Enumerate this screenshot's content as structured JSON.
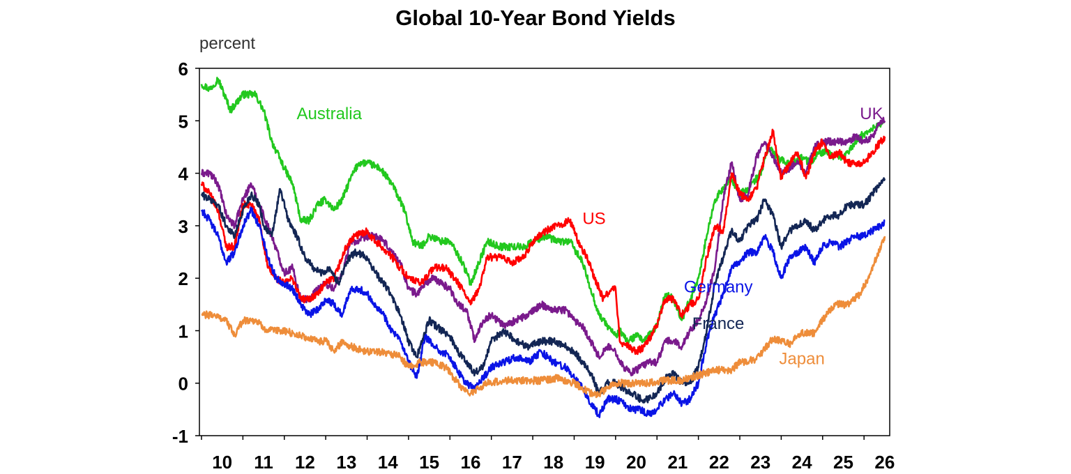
{
  "chart_data": {
    "type": "line",
    "title": "Global 10-Year Bond Yields",
    "ylabel": "percent",
    "xlabel": "",
    "xlim": [
      2009.95,
      2026.62
    ],
    "ylim": [
      -1,
      6
    ],
    "yticks": [
      -1,
      0,
      1,
      2,
      3,
      4,
      5,
      6
    ],
    "xticks": [
      {
        "label": "10",
        "x": 2010.5
      },
      {
        "label": "11",
        "x": 2011.5
      },
      {
        "label": "12",
        "x": 2012.5
      },
      {
        "label": "13",
        "x": 2013.5
      },
      {
        "label": "14",
        "x": 2014.5
      },
      {
        "label": "15",
        "x": 2015.5
      },
      {
        "label": "16",
        "x": 2016.5
      },
      {
        "label": "17",
        "x": 2017.5
      },
      {
        "label": "18",
        "x": 2018.5
      },
      {
        "label": "19",
        "x": 2019.5
      },
      {
        "label": "20",
        "x": 2020.5
      },
      {
        "label": "21",
        "x": 2021.5
      },
      {
        "label": "22",
        "x": 2022.5
      },
      {
        "label": "23",
        "x": 2023.5
      },
      {
        "label": "24",
        "x": 2024.5
      },
      {
        "label": "25",
        "x": 2025.5
      },
      {
        "label": "26",
        "x": 2026.5
      }
    ],
    "grid": false,
    "legend": "inline labels",
    "series": [
      {
        "name": "Australia",
        "color": "#22c81e",
        "label_at": [
          2012.3,
          5.03
        ],
        "x": [
          2010.0,
          2010.2,
          2010.4,
          2010.7,
          2011.0,
          2011.3,
          2011.5,
          2011.7,
          2012.0,
          2012.2,
          2012.4,
          2012.6,
          2012.8,
          2013.0,
          2013.2,
          2013.4,
          2013.6,
          2013.8,
          2014.0,
          2014.3,
          2014.6,
          2014.9,
          2015.1,
          2015.3,
          2015.5,
          2015.8,
          2016.0,
          2016.3,
          2016.5,
          2016.7,
          2016.9,
          2017.2,
          2017.5,
          2017.8,
          2018.0,
          2018.3,
          2018.6,
          2018.9,
          2019.2,
          2019.4,
          2019.6,
          2019.8,
          2020.0,
          2020.1,
          2020.3,
          2020.5,
          2020.7,
          2021.0,
          2021.2,
          2021.4,
          2021.6,
          2021.8,
          2022.0,
          2022.2,
          2022.4,
          2022.6,
          2022.8,
          2023.0,
          2023.2,
          2023.5,
          2023.7,
          2023.9,
          2024.1,
          2024.3,
          2024.5,
          2024.7,
          2024.9,
          2025.1,
          2025.3,
          2025.5,
          2025.7,
          2025.9,
          2026.1,
          2026.3,
          2026.5
        ],
        "y": [
          5.7,
          5.6,
          5.8,
          5.2,
          5.5,
          5.5,
          5.2,
          4.6,
          4.1,
          3.8,
          3.1,
          3.1,
          3.4,
          3.5,
          3.3,
          3.5,
          3.9,
          4.2,
          4.2,
          4.1,
          3.8,
          3.3,
          2.7,
          2.6,
          2.8,
          2.7,
          2.7,
          2.3,
          1.9,
          2.3,
          2.7,
          2.6,
          2.6,
          2.6,
          2.7,
          2.8,
          2.7,
          2.7,
          2.3,
          1.8,
          1.3,
          1.1,
          0.9,
          1.0,
          0.8,
          0.9,
          0.8,
          1.1,
          1.7,
          1.6,
          1.2,
          1.6,
          2.0,
          2.8,
          3.5,
          3.7,
          3.9,
          3.6,
          3.7,
          4.0,
          4.5,
          4.3,
          4.2,
          4.2,
          4.3,
          4.2,
          4.4,
          4.4,
          4.3,
          4.3,
          4.5,
          4.7,
          4.8,
          4.9,
          5.0
        ]
      },
      {
        "name": "UK",
        "color": "#7a1a8c",
        "label_at": [
          2025.9,
          5.03
        ],
        "x": [
          2010.0,
          2010.2,
          2010.4,
          2010.6,
          2010.8,
          2011.0,
          2011.2,
          2011.5,
          2011.7,
          2012.0,
          2012.2,
          2012.4,
          2012.6,
          2012.8,
          2013.0,
          2013.2,
          2013.4,
          2013.6,
          2013.8,
          2014.0,
          2014.2,
          2014.4,
          2014.6,
          2014.8,
          2015.0,
          2015.2,
          2015.4,
          2015.6,
          2015.8,
          2016.0,
          2016.2,
          2016.4,
          2016.6,
          2016.8,
          2017.0,
          2017.3,
          2017.6,
          2017.9,
          2018.2,
          2018.5,
          2018.8,
          2019.0,
          2019.2,
          2019.4,
          2019.6,
          2019.8,
          2020.0,
          2020.2,
          2020.4,
          2020.6,
          2020.8,
          2021.0,
          2021.2,
          2021.4,
          2021.6,
          2021.8,
          2022.0,
          2022.2,
          2022.4,
          2022.6,
          2022.8,
          2023.0,
          2023.2,
          2023.4,
          2023.6,
          2023.8,
          2024.0,
          2024.2,
          2024.4,
          2024.6,
          2024.8,
          2025.0,
          2025.2,
          2025.4,
          2025.6,
          2025.8,
          2026.0,
          2026.2,
          2026.4,
          2026.5
        ],
        "y": [
          4.0,
          4.0,
          3.8,
          3.2,
          3.0,
          3.5,
          3.8,
          3.2,
          2.8,
          2.1,
          2.2,
          1.6,
          1.6,
          1.8,
          1.9,
          1.8,
          2.1,
          2.7,
          2.7,
          2.8,
          2.8,
          2.7,
          2.5,
          2.3,
          1.8,
          1.7,
          1.9,
          2.0,
          1.9,
          1.8,
          1.5,
          1.4,
          0.8,
          1.2,
          1.3,
          1.1,
          1.2,
          1.3,
          1.5,
          1.4,
          1.4,
          1.2,
          1.1,
          0.8,
          0.5,
          0.7,
          0.6,
          0.3,
          0.2,
          0.3,
          0.4,
          0.4,
          0.8,
          0.8,
          0.7,
          1.0,
          1.2,
          1.6,
          2.2,
          3.5,
          4.2,
          3.5,
          3.6,
          4.3,
          4.6,
          4.3,
          4.0,
          4.1,
          4.2,
          4.0,
          4.5,
          4.6,
          4.6,
          4.6,
          4.6,
          4.7,
          4.6,
          4.7,
          5.0,
          5.0
        ]
      },
      {
        "name": "US",
        "color": "#ff0000",
        "label_at": [
          2019.2,
          3.03
        ],
        "x": [
          2010.0,
          2010.2,
          2010.4,
          2010.6,
          2010.8,
          2011.0,
          2011.2,
          2011.4,
          2011.6,
          2011.8,
          2012.0,
          2012.2,
          2012.4,
          2012.6,
          2012.8,
          2013.0,
          2013.2,
          2013.5,
          2013.7,
          2014.0,
          2014.2,
          2014.5,
          2014.8,
          2015.0,
          2015.3,
          2015.6,
          2015.9,
          2016.1,
          2016.3,
          2016.5,
          2016.7,
          2016.9,
          2017.2,
          2017.5,
          2017.8,
          2018.0,
          2018.3,
          2018.6,
          2018.9,
          2019.1,
          2019.3,
          2019.5,
          2019.7,
          2019.9,
          2020.0,
          2020.1,
          2020.3,
          2020.5,
          2020.7,
          2021.0,
          2021.2,
          2021.4,
          2021.6,
          2021.8,
          2022.0,
          2022.2,
          2022.4,
          2022.6,
          2022.8,
          2023.0,
          2023.2,
          2023.4,
          2023.6,
          2023.8,
          2024.0,
          2024.2,
          2024.4,
          2024.6,
          2024.8,
          2025.0,
          2025.2,
          2025.4,
          2025.6,
          2025.8,
          2026.0,
          2026.2,
          2026.4,
          2026.5
        ],
        "y": [
          3.8,
          3.6,
          3.3,
          2.6,
          2.6,
          3.4,
          3.4,
          3.1,
          2.2,
          2.0,
          1.9,
          2.0,
          1.6,
          1.6,
          1.7,
          1.9,
          2.0,
          2.6,
          2.8,
          2.9,
          2.7,
          2.5,
          2.2,
          2.0,
          1.9,
          2.2,
          2.2,
          2.0,
          1.8,
          1.5,
          1.8,
          2.4,
          2.4,
          2.3,
          2.4,
          2.7,
          2.9,
          3.0,
          3.1,
          2.7,
          2.4,
          2.0,
          1.6,
          1.8,
          1.8,
          0.8,
          0.7,
          0.6,
          0.7,
          1.1,
          1.6,
          1.6,
          1.3,
          1.5,
          1.6,
          2.4,
          3.0,
          2.9,
          4.0,
          3.6,
          3.5,
          3.7,
          4.3,
          4.8,
          3.9,
          4.2,
          4.4,
          3.9,
          4.4,
          4.6,
          4.3,
          4.4,
          4.2,
          4.2,
          4.2,
          4.4,
          4.6,
          4.7
        ]
      },
      {
        "name": "France",
        "color": "#132654",
        "label_at": [
          2021.85,
          1.03
        ],
        "x": [
          2010.0,
          2010.2,
          2010.4,
          2010.6,
          2010.8,
          2011.0,
          2011.2,
          2011.4,
          2011.5,
          2011.7,
          2011.9,
          2012.1,
          2012.3,
          2012.5,
          2012.7,
          2012.9,
          2013.1,
          2013.3,
          2013.5,
          2013.7,
          2014.0,
          2014.2,
          2014.5,
          2014.8,
          2015.0,
          2015.2,
          2015.5,
          2015.8,
          2016.0,
          2016.2,
          2016.4,
          2016.6,
          2016.8,
          2017.0,
          2017.3,
          2017.6,
          2017.9,
          2018.2,
          2018.5,
          2018.8,
          2019.0,
          2019.2,
          2019.4,
          2019.6,
          2019.8,
          2020.0,
          2020.2,
          2020.4,
          2020.6,
          2020.8,
          2021.0,
          2021.2,
          2021.4,
          2021.6,
          2021.8,
          2022.0,
          2022.2,
          2022.4,
          2022.6,
          2022.8,
          2023.0,
          2023.2,
          2023.4,
          2023.6,
          2023.8,
          2024.0,
          2024.2,
          2024.4,
          2024.6,
          2024.8,
          2025.0,
          2025.2,
          2025.4,
          2025.6,
          2025.8,
          2026.0,
          2026.2,
          2026.4,
          2026.5
        ],
        "y": [
          3.6,
          3.5,
          3.4,
          3.0,
          2.8,
          3.3,
          3.6,
          3.4,
          3.0,
          2.8,
          3.7,
          3.1,
          2.8,
          2.4,
          2.2,
          2.1,
          2.2,
          1.9,
          2.3,
          2.5,
          2.4,
          2.1,
          1.8,
          1.3,
          0.8,
          0.5,
          1.2,
          1.0,
          0.9,
          0.6,
          0.4,
          0.2,
          0.3,
          0.8,
          1.0,
          0.8,
          0.7,
          0.8,
          0.8,
          0.7,
          0.6,
          0.4,
          0.2,
          -0.2,
          0.0,
          0.0,
          -0.1,
          -0.2,
          -0.3,
          -0.3,
          -0.2,
          0.1,
          0.2,
          0.0,
          0.0,
          0.3,
          1.0,
          1.9,
          2.4,
          2.9,
          2.7,
          3.0,
          3.1,
          3.5,
          3.2,
          2.6,
          2.9,
          3.0,
          3.1,
          2.9,
          3.1,
          3.2,
          3.2,
          3.4,
          3.4,
          3.4,
          3.6,
          3.8,
          3.9
        ]
      },
      {
        "name": "Germany",
        "color": "#0a14e6",
        "label_at": [
          2021.65,
          1.73
        ],
        "x": [
          2010.0,
          2010.2,
          2010.4,
          2010.6,
          2010.8,
          2011.0,
          2011.2,
          2011.4,
          2011.6,
          2011.8,
          2012.0,
          2012.2,
          2012.4,
          2012.6,
          2012.8,
          2013.0,
          2013.2,
          2013.4,
          2013.6,
          2013.8,
          2014.0,
          2014.2,
          2014.4,
          2014.6,
          2014.8,
          2015.0,
          2015.2,
          2015.4,
          2015.6,
          2015.8,
          2016.0,
          2016.2,
          2016.4,
          2016.6,
          2016.8,
          2017.0,
          2017.3,
          2017.6,
          2017.9,
          2018.2,
          2018.5,
          2018.8,
          2019.0,
          2019.2,
          2019.4,
          2019.6,
          2019.8,
          2020.0,
          2020.2,
          2020.4,
          2020.6,
          2020.8,
          2021.0,
          2021.2,
          2021.4,
          2021.6,
          2021.8,
          2022.0,
          2022.2,
          2022.4,
          2022.6,
          2022.8,
          2023.0,
          2023.2,
          2023.4,
          2023.6,
          2023.8,
          2024.0,
          2024.2,
          2024.4,
          2024.6,
          2024.8,
          2025.0,
          2025.2,
          2025.4,
          2025.6,
          2025.8,
          2026.0,
          2026.2,
          2026.4,
          2026.5
        ],
        "y": [
          3.3,
          3.1,
          2.8,
          2.3,
          2.5,
          3.0,
          3.3,
          3.0,
          2.4,
          2.0,
          1.9,
          1.8,
          1.5,
          1.3,
          1.4,
          1.6,
          1.5,
          1.3,
          1.8,
          1.8,
          1.7,
          1.5,
          1.3,
          1.0,
          0.8,
          0.4,
          0.1,
          0.9,
          0.7,
          0.6,
          0.5,
          0.2,
          0.0,
          -0.1,
          0.1,
          0.3,
          0.4,
          0.5,
          0.4,
          0.6,
          0.4,
          0.3,
          0.1,
          -0.1,
          -0.4,
          -0.6,
          -0.3,
          -0.3,
          -0.4,
          -0.5,
          -0.5,
          -0.6,
          -0.5,
          -0.3,
          -0.2,
          -0.4,
          -0.3,
          0.0,
          0.8,
          1.3,
          1.7,
          2.2,
          2.3,
          2.5,
          2.5,
          2.8,
          2.5,
          2.0,
          2.4,
          2.5,
          2.6,
          2.3,
          2.6,
          2.7,
          2.6,
          2.7,
          2.8,
          2.8,
          2.9,
          3.0,
          3.1
        ]
      },
      {
        "name": "Japan",
        "color": "#ee8d3a",
        "label_at": [
          2023.95,
          0.36
        ],
        "x": [
          2010.0,
          2010.3,
          2010.6,
          2010.8,
          2011.0,
          2011.3,
          2011.6,
          2012.0,
          2012.4,
          2012.8,
          2013.0,
          2013.2,
          2013.4,
          2013.6,
          2014.0,
          2014.4,
          2014.8,
          2015.0,
          2015.3,
          2015.6,
          2015.9,
          2016.1,
          2016.3,
          2016.5,
          2016.7,
          2016.9,
          2017.3,
          2017.8,
          2018.2,
          2018.6,
          2019.0,
          2019.4,
          2019.6,
          2019.8,
          2020.0,
          2020.4,
          2020.8,
          2021.2,
          2021.6,
          2022.0,
          2022.4,
          2022.8,
          2023.0,
          2023.4,
          2023.8,
          2024.2,
          2024.5,
          2024.8,
          2025.0,
          2025.3,
          2025.6,
          2025.9,
          2026.1,
          2026.3,
          2026.5
        ],
        "y": [
          1.3,
          1.3,
          1.2,
          0.9,
          1.2,
          1.2,
          1.0,
          1.0,
          0.9,
          0.8,
          0.8,
          0.6,
          0.8,
          0.7,
          0.6,
          0.6,
          0.5,
          0.3,
          0.4,
          0.4,
          0.3,
          0.1,
          -0.1,
          -0.2,
          -0.1,
          0.0,
          0.05,
          0.05,
          0.05,
          0.1,
          0.0,
          -0.2,
          -0.2,
          -0.1,
          0.0,
          0.0,
          0.0,
          0.05,
          0.05,
          0.15,
          0.25,
          0.25,
          0.4,
          0.45,
          0.85,
          0.75,
          0.95,
          0.95,
          1.2,
          1.5,
          1.5,
          1.7,
          2.0,
          2.4,
          2.8
        ]
      }
    ]
  }
}
